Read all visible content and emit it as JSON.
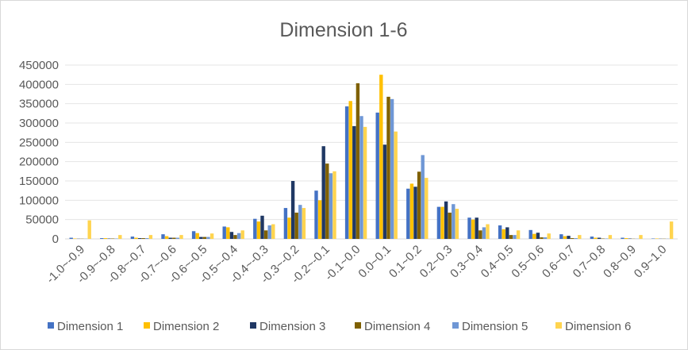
{
  "chart_data": {
    "type": "bar",
    "title": "Dimension 1-6",
    "categories": [
      "-1.0~-0.9",
      "-0.9~-0.8",
      "-0.8~-0.7",
      "-0.7~-0.6",
      "-0.6~-0.5",
      "-0.5~-0.4",
      "-0.4~-0.3",
      "-0.3~-0.2",
      "-0.2~-0.1",
      "-0.1~0.0",
      "0.0~0.1",
      "0.1~0.2",
      "0.2~0.3",
      "0.3~0.4",
      "0.4~0.5",
      "0.5~0.6",
      "0.6~0.7",
      "0.7~0.8",
      "0.8~0.9",
      "0.9~1.0"
    ],
    "ylim": [
      0,
      450000
    ],
    "yticks": [
      0,
      50000,
      100000,
      150000,
      200000,
      250000,
      300000,
      350000,
      400000,
      450000
    ],
    "grid": true,
    "legend_position": "bottom",
    "series": [
      {
        "name": "Dimension 1",
        "color": "#4472C4",
        "values": [
          3000,
          2000,
          6000,
          12000,
          20000,
          32000,
          52000,
          80000,
          125000,
          343000,
          327000,
          130000,
          83000,
          55000,
          35000,
          23000,
          12000,
          6000,
          3000,
          1000
        ]
      },
      {
        "name": "Dimension 2",
        "color": "#FFC000",
        "values": [
          1000,
          2000,
          3000,
          7000,
          15000,
          30000,
          45000,
          55000,
          100000,
          357000,
          425000,
          143000,
          83000,
          50000,
          25000,
          13000,
          7000,
          3000,
          2000,
          1000
        ]
      },
      {
        "name": "Dimension 3",
        "color": "#203864",
        "values": [
          500,
          1000,
          2000,
          3000,
          5000,
          18000,
          60000,
          150000,
          240000,
          292000,
          244000,
          135000,
          97000,
          55000,
          30000,
          16000,
          8000,
          3000,
          1000,
          500
        ]
      },
      {
        "name": "Dimension 4",
        "color": "#7F6000",
        "values": [
          500,
          1000,
          2000,
          3000,
          5000,
          10000,
          22000,
          68000,
          195000,
          403000,
          368000,
          174000,
          68000,
          22000,
          10000,
          4000,
          2000,
          1000,
          500,
          500
        ]
      },
      {
        "name": "Dimension 5",
        "color": "#6F97D5",
        "values": [
          500,
          1000,
          2000,
          3000,
          5000,
          15000,
          35000,
          88000,
          170000,
          318000,
          362000,
          217000,
          90000,
          30000,
          10000,
          4000,
          2000,
          1000,
          500,
          500
        ]
      },
      {
        "name": "Dimension 6",
        "color": "#FFD44F",
        "values": [
          48000,
          10000,
          10000,
          10000,
          14000,
          22000,
          38000,
          80000,
          175000,
          290000,
          278000,
          158000,
          78000,
          38000,
          22000,
          14000,
          10000,
          10000,
          10000,
          45000
        ]
      }
    ]
  }
}
